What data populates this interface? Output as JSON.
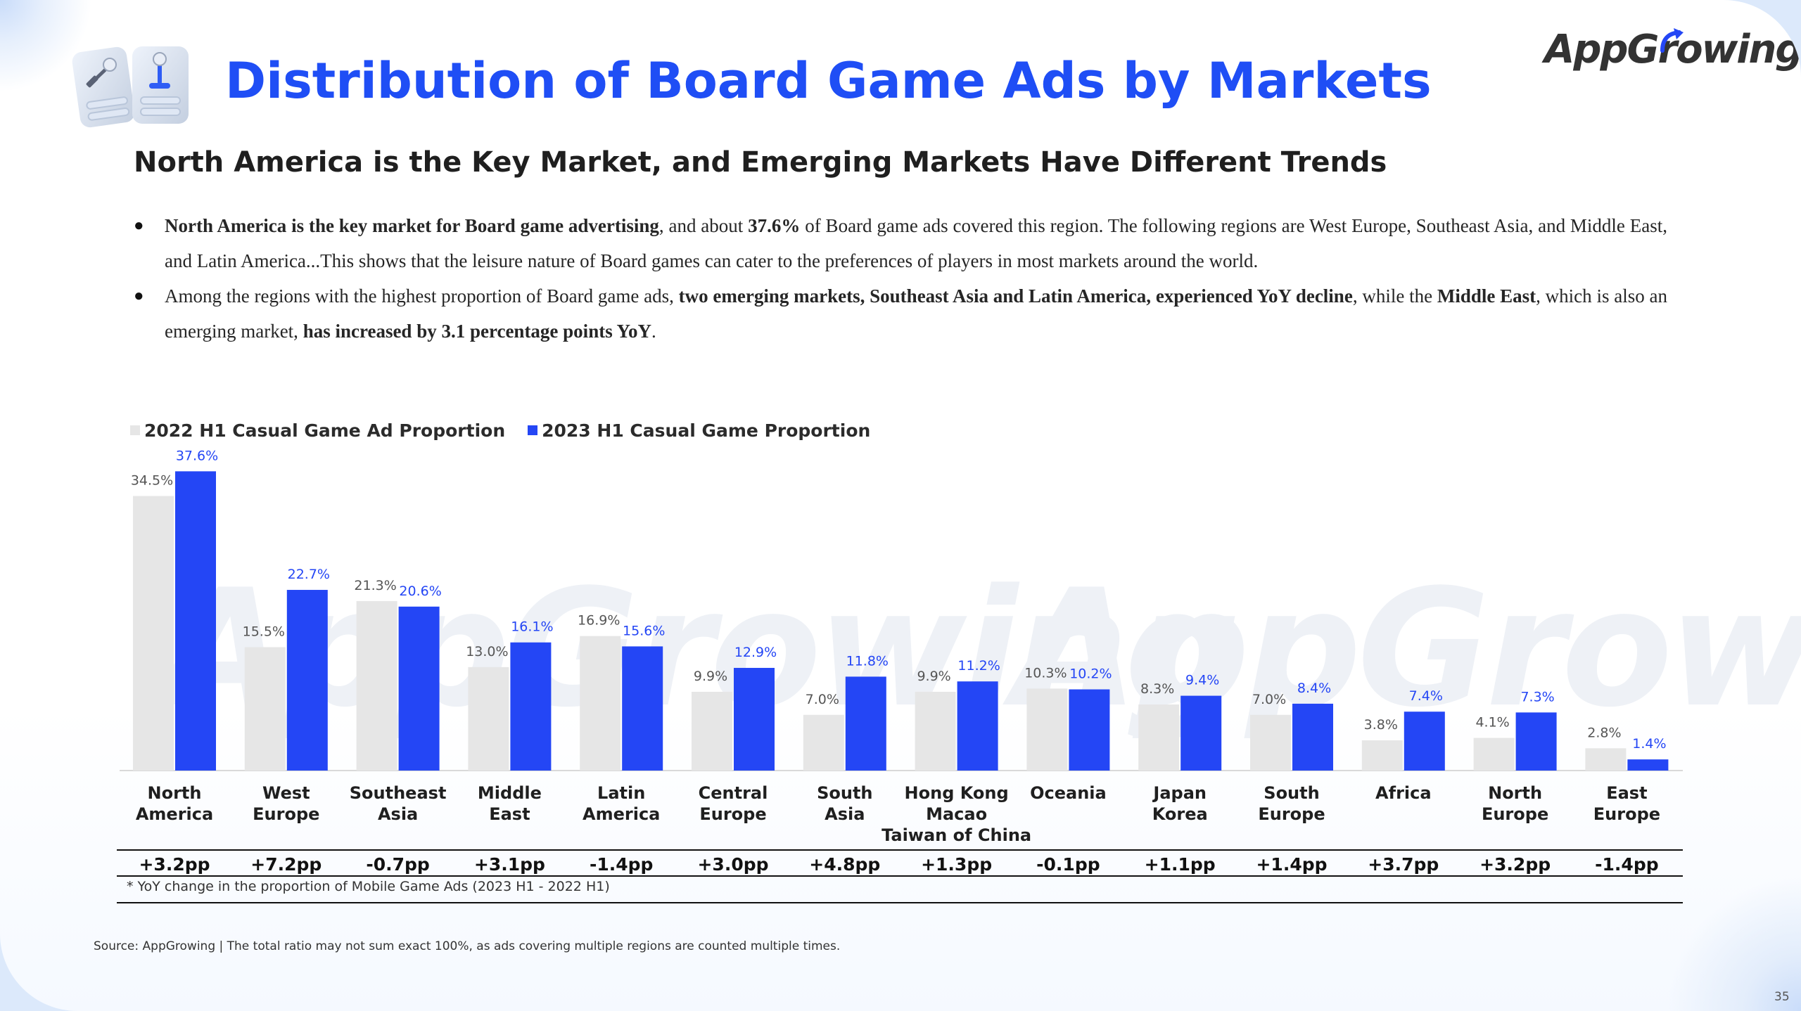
{
  "header": {
    "title": "Distribution of Board Game Ads by Markets",
    "brand": "AppGrowing",
    "subtitle": "North America is the Key Market, and Emerging Markets Have Different Trends"
  },
  "bullets": [
    {
      "runs": [
        {
          "text": "North America is the key market for Board game advertising",
          "bold": true
        },
        {
          "text": ", and about ",
          "bold": false
        },
        {
          "text": "37.6%",
          "bold": true
        },
        {
          "text": " of Board game ads covered this region. The following regions are West Europe, Southeast Asia, and Middle East, and Latin America...This shows that the leisure nature of Board games can cater to the preferences of players in most markets around the world.",
          "bold": false
        }
      ]
    },
    {
      "runs": [
        {
          "text": "Among the regions with the highest proportion of Board game ads, ",
          "bold": false
        },
        {
          "text": "two emerging markets, Southeast Asia and Latin America, experienced YoY decline",
          "bold": true
        },
        {
          "text": ", while the ",
          "bold": false
        },
        {
          "text": "Middle East",
          "bold": true
        },
        {
          "text": ", which is also an emerging market, ",
          "bold": false
        },
        {
          "text": "has increased by 3.1 percentage points YoY",
          "bold": true
        },
        {
          "text": ".",
          "bold": false
        }
      ]
    }
  ],
  "colors": {
    "title": "#1f4ef5",
    "series_2022": "#e6e6e6",
    "series_2023": "#2446f5",
    "label_2022": "#555555",
    "label_2023": "#2446f5"
  },
  "chart_data": {
    "type": "bar",
    "legend_position": "top-left",
    "grid": false,
    "ylim": [
      0,
      40
    ],
    "categories": [
      [
        "North",
        "America"
      ],
      [
        "West",
        "Europe"
      ],
      [
        "Southeast",
        "Asia"
      ],
      [
        "Middle",
        "East"
      ],
      [
        "Latin",
        "America"
      ],
      [
        "Central",
        "Europe"
      ],
      [
        "South",
        "Asia"
      ],
      [
        "Hong Kong",
        "Macao",
        "Taiwan of China"
      ],
      [
        "Oceania"
      ],
      [
        "Japan",
        "Korea"
      ],
      [
        "South",
        "Europe"
      ],
      [
        "Africa"
      ],
      [
        "North",
        "Europe"
      ],
      [
        "East",
        "Europe"
      ]
    ],
    "series": [
      {
        "name": "2022 H1 Casual Game Ad Proportion",
        "values": [
          34.5,
          15.5,
          21.3,
          13.0,
          16.9,
          9.9,
          7.0,
          9.9,
          10.3,
          8.3,
          7.0,
          3.8,
          4.1,
          2.8
        ],
        "labels": [
          "34.5%",
          "15.5%",
          "21.3%",
          "13.0%",
          "16.9%",
          "9.9%",
          "7.0%",
          "9.9%",
          "10.3%",
          "8.3%",
          "7.0%",
          "3.8%",
          "4.1%",
          "2.8%"
        ]
      },
      {
        "name": "2023 H1 Casual Game Proportion",
        "values": [
          37.6,
          22.7,
          20.6,
          16.1,
          15.6,
          12.9,
          11.8,
          11.2,
          10.2,
          9.4,
          8.4,
          7.4,
          7.3,
          1.4
        ],
        "labels": [
          "37.6%",
          "22.7%",
          "20.6%",
          "16.1%",
          "15.6%",
          "12.9%",
          "11.8%",
          "11.2%",
          "10.2%",
          "9.4%",
          "8.4%",
          "7.4%",
          "7.3%",
          "1.4%"
        ]
      }
    ],
    "yoy_change": [
      "+3.2pp",
      "+7.2pp",
      "-0.7pp",
      "+3.1pp",
      "-1.4pp",
      "+3.0pp",
      "+4.8pp",
      "+1.3pp",
      "-0.1pp",
      "+1.1pp",
      "+1.4pp",
      "+3.7pp",
      "+3.2pp",
      "-1.4pp"
    ]
  },
  "footnote": "* YoY change in the proportion of Mobile Game Ads (2023 H1 - 2022 H1)",
  "source": "Source: AppGrowing | The total ratio may not sum exact 100%, as ads covering multiple regions are counted multiple times.",
  "page_number": "35"
}
